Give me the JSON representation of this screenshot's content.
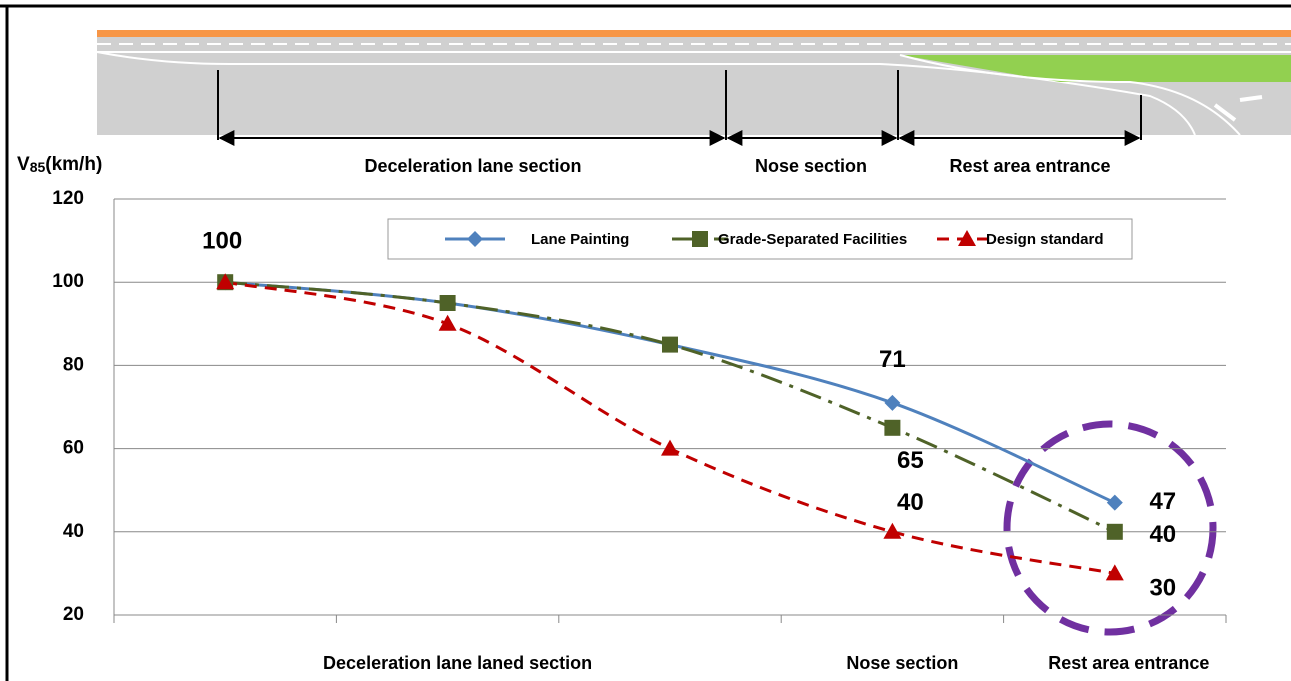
{
  "chart_data": {
    "type": "line",
    "diagram_labels": [
      "Deceleration lane section",
      "Nose section",
      "Rest area entrance"
    ],
    "ylabel": [
      "V",
      "85",
      "(km/h)"
    ],
    "categories": [
      null,
      "Deceleration lane laned section",
      null,
      "Nose section",
      "Rest area entrance"
    ],
    "ylim": [
      20,
      120
    ],
    "yticks": [
      20,
      40,
      60,
      80,
      100,
      120
    ],
    "grid": true,
    "series": [
      {
        "name": "Lane Painting",
        "color": "#4f81bd",
        "marker": "diamond",
        "dash": "solid",
        "values": [
          100,
          95,
          85,
          71,
          47
        ],
        "data_labels": [
          true,
          false,
          false,
          true,
          true
        ]
      },
      {
        "name": "Grade-Separated Facilities",
        "color": "#4f6228",
        "marker": "square",
        "dash": "dashdot",
        "values": [
          100,
          95,
          85,
          65,
          40
        ],
        "data_labels": [
          false,
          false,
          false,
          true,
          true
        ]
      },
      {
        "name": "Design standard",
        "color": "#c00000",
        "marker": "triangle",
        "dash": "dashed",
        "values": [
          100,
          90,
          60,
          40,
          30
        ],
        "data_labels": [
          false,
          false,
          false,
          true,
          true
        ]
      }
    ]
  }
}
